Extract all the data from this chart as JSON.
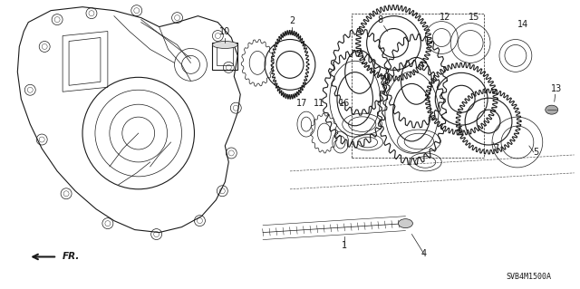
{
  "part_number": "SVB4M1500A",
  "background_color": "#ffffff",
  "fig_width": 6.4,
  "fig_height": 3.19,
  "dpi": 100,
  "diagram_color": "#1a1a1a",
  "label_fontsize": 7,
  "part_number_fontsize": 6
}
